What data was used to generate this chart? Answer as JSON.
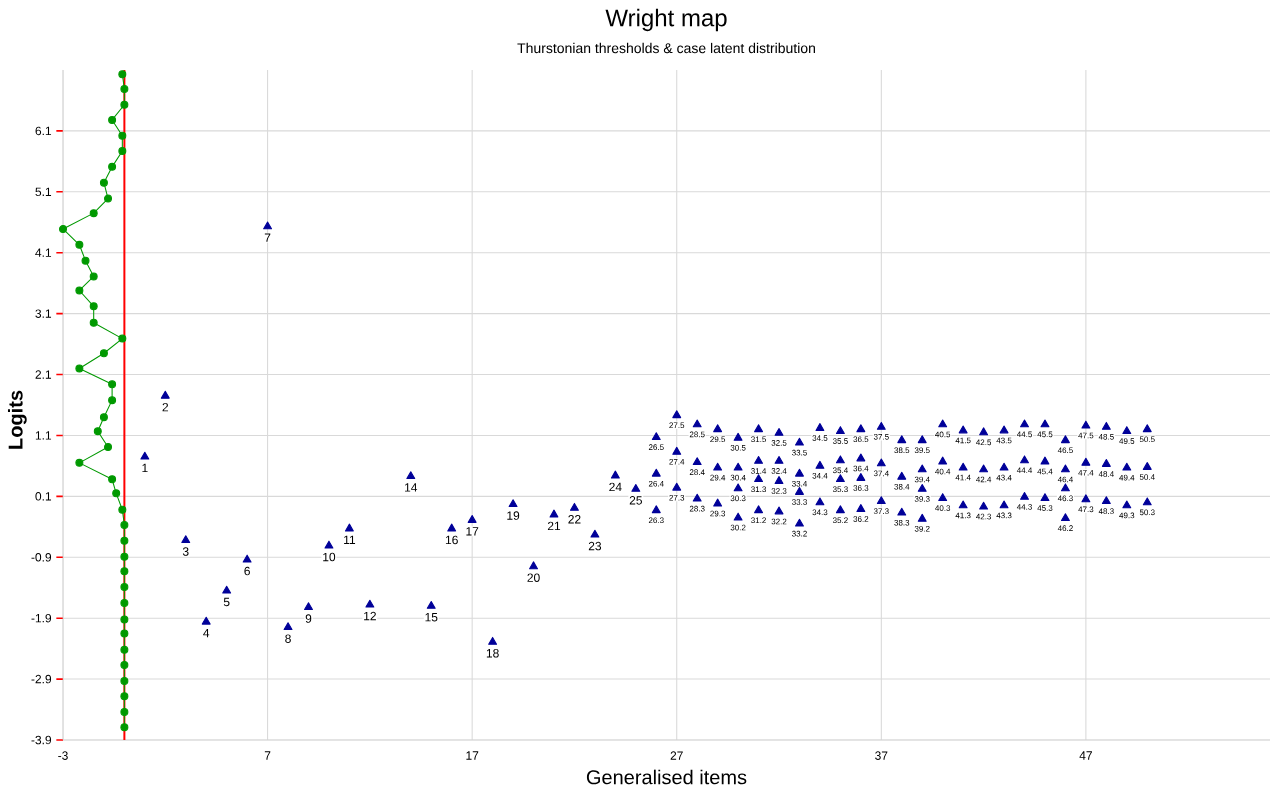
{
  "chart_data": {
    "type": "scatter",
    "title": "Wright map",
    "subtitle": "Thurstonian thresholds & case latent distribution",
    "xlabel": "Generalised items",
    "ylabel": "Logits",
    "xlim": [
      -3,
      56
    ],
    "ylim": [
      -3.9,
      7.1
    ],
    "xticks": [
      -3,
      7,
      17,
      27,
      37,
      47
    ],
    "yticks": [
      -3.9,
      -2.9,
      -1.9,
      -0.9,
      0.1,
      1.1,
      2.1,
      3.1,
      4.1,
      5.1,
      6.1
    ],
    "grid": true,
    "ref_lines": [
      {
        "axis": "x",
        "value": 0,
        "color": "#ff0000"
      }
    ],
    "series": [
      {
        "type": "line",
        "color": "#009900",
        "marker": "circle",
        "x": [
          -0.1,
          0,
          0,
          -0.6,
          -0.1,
          -0.1,
          -0.6,
          -1.0,
          -0.8,
          -1.5,
          -3,
          -2.2,
          -1.9,
          -1.5,
          -2.2,
          -1.5,
          -1.5,
          -0.1,
          -1.0,
          -2.2,
          -0.6,
          -0.6,
          -1.0,
          -1.3,
          -0.8,
          -2.2,
          -0.6,
          -0.4,
          -0.1,
          0,
          0,
          0,
          0,
          0,
          0,
          0,
          0,
          0,
          0,
          0,
          0,
          0,
          0
        ],
        "values": [
          7.03,
          6.79,
          6.53,
          6.28,
          6.02,
          5.77,
          5.51,
          5.25,
          4.99,
          4.75,
          4.49,
          4.23,
          3.97,
          3.71,
          3.48,
          3.22,
          2.95,
          2.69,
          2.45,
          2.2,
          1.94,
          1.68,
          1.4,
          1.17,
          0.91,
          0.65,
          0.38,
          0.15,
          -0.12,
          -0.37,
          -0.63,
          -0.89,
          -1.13,
          -1.39,
          -1.65,
          -1.92,
          -2.15,
          -2.42,
          -2.67,
          -2.93,
          -3.18,
          -3.44,
          -3.69
        ]
      },
      {
        "type": "scatter",
        "color": "#000099",
        "marker": "triangle",
        "x": [
          1,
          2,
          3,
          4,
          5,
          6,
          7,
          8,
          9,
          10,
          11,
          12,
          14,
          15,
          16,
          17,
          18,
          19,
          20,
          21,
          22,
          23,
          24,
          25,
          26,
          26,
          26,
          27,
          27,
          27,
          28,
          28,
          28,
          29,
          29,
          29,
          30,
          30,
          30,
          30,
          31,
          31,
          31,
          31,
          32,
          32,
          32,
          32,
          33,
          33,
          33,
          33,
          34,
          34,
          34,
          35,
          35,
          35,
          35,
          36,
          36,
          36,
          36,
          37,
          37,
          37,
          38,
          38,
          38,
          39,
          39,
          39,
          39,
          40,
          40,
          40,
          41,
          41,
          41,
          42,
          42,
          42,
          43,
          43,
          43,
          44,
          44,
          44,
          45,
          45,
          45,
          46,
          46,
          46,
          46,
          47,
          47,
          47,
          48,
          48,
          48,
          49,
          49,
          49,
          50,
          50,
          50
        ],
        "values": [
          0.75,
          1.75,
          -0.62,
          -1.96,
          -1.45,
          -0.94,
          4.53,
          -2.05,
          -1.72,
          -0.71,
          -0.43,
          -1.68,
          0.43,
          -1.7,
          -0.43,
          -0.29,
          -2.29,
          -0.03,
          -1.05,
          -0.2,
          -0.09,
          -0.53,
          0.44,
          0.22,
          1.07,
          0.47,
          -0.13,
          1.43,
          0.83,
          0.24,
          1.28,
          0.66,
          0.06,
          1.2,
          0.57,
          -0.02,
          1.06,
          0.57,
          0.23,
          -0.25,
          1.2,
          0.68,
          0.38,
          -0.13,
          1.14,
          0.68,
          0.35,
          -0.15,
          0.98,
          0.47,
          0.17,
          -0.35,
          1.22,
          0.6,
          0.0,
          1.17,
          0.69,
          0.38,
          -0.13,
          1.2,
          0.72,
          0.4,
          -0.11,
          1.24,
          0.64,
          0.02,
          1.02,
          0.42,
          -0.17,
          1.02,
          0.54,
          0.22,
          -0.27,
          1.28,
          0.67,
          0.07,
          1.18,
          0.57,
          -0.05,
          1.15,
          0.54,
          -0.07,
          1.18,
          0.57,
          -0.05,
          1.28,
          0.69,
          0.09,
          1.28,
          0.67,
          0.07,
          1.02,
          0.54,
          0.23,
          -0.26,
          1.26,
          0.65,
          0.05,
          1.24,
          0.63,
          0.02,
          1.17,
          0.57,
          -0.05,
          1.2,
          0.58,
          0.0
        ]
      }
    ],
    "annotations": [
      {
        "text": "1",
        "x": 1,
        "y": 0.75
      },
      {
        "text": "2",
        "x": 2,
        "y": 1.75
      },
      {
        "text": "3",
        "x": 3,
        "y": -0.62
      },
      {
        "text": "4",
        "x": 4,
        "y": -1.96
      },
      {
        "text": "5",
        "x": 5,
        "y": -1.45
      },
      {
        "text": "6",
        "x": 6,
        "y": -0.94
      },
      {
        "text": "7",
        "x": 7,
        "y": 4.53
      },
      {
        "text": "8",
        "x": 8,
        "y": -2.05
      },
      {
        "text": "9",
        "x": 9,
        "y": -1.72
      },
      {
        "text": "10",
        "x": 10,
        "y": -0.71
      },
      {
        "text": "11",
        "x": 11,
        "y": -0.43
      },
      {
        "text": "12",
        "x": 12,
        "y": -1.68
      },
      {
        "text": "14",
        "x": 14,
        "y": 0.43
      },
      {
        "text": "15",
        "x": 15,
        "y": -1.7
      },
      {
        "text": "16",
        "x": 16,
        "y": -0.43
      },
      {
        "text": "17",
        "x": 17,
        "y": -0.29
      },
      {
        "text": "18",
        "x": 18,
        "y": -2.29
      },
      {
        "text": "19",
        "x": 19,
        "y": -0.03
      },
      {
        "text": "20",
        "x": 20,
        "y": -1.05
      },
      {
        "text": "21",
        "x": 21,
        "y": -0.2
      },
      {
        "text": "22",
        "x": 22,
        "y": -0.09
      },
      {
        "text": "23",
        "x": 23,
        "y": -0.53
      },
      {
        "text": "24",
        "x": 24,
        "y": 0.44
      },
      {
        "text": "25",
        "x": 25,
        "y": 0.22
      },
      {
        "text": "26.5",
        "x": 26,
        "y": 1.07
      },
      {
        "text": "26.4",
        "x": 26,
        "y": 0.47
      },
      {
        "text": "26.3",
        "x": 26,
        "y": -0.13
      },
      {
        "text": "27.5",
        "x": 27,
        "y": 1.43
      },
      {
        "text": "27.4",
        "x": 27,
        "y": 0.83
      },
      {
        "text": "27.3",
        "x": 27,
        "y": 0.24
      },
      {
        "text": "28.5",
        "x": 28,
        "y": 1.28
      },
      {
        "text": "28.4",
        "x": 28,
        "y": 0.66
      },
      {
        "text": "28.3",
        "x": 28,
        "y": 0.06
      },
      {
        "text": "29.5",
        "x": 29,
        "y": 1.2
      },
      {
        "text": "29.4",
        "x": 29,
        "y": 0.57
      },
      {
        "text": "29.3",
        "x": 29,
        "y": -0.02
      },
      {
        "text": "30.5",
        "x": 30,
        "y": 1.06
      },
      {
        "text": "30.4",
        "x": 30,
        "y": 0.57
      },
      {
        "text": "30.3",
        "x": 30,
        "y": 0.23
      },
      {
        "text": "30.2",
        "x": 30,
        "y": -0.25
      },
      {
        "text": "31.5",
        "x": 31,
        "y": 1.2
      },
      {
        "text": "31.4",
        "x": 31,
        "y": 0.68
      },
      {
        "text": "31.3",
        "x": 31,
        "y": 0.38
      },
      {
        "text": "31.2",
        "x": 31,
        "y": -0.13
      },
      {
        "text": "32.5",
        "x": 32,
        "y": 1.14
      },
      {
        "text": "32.4",
        "x": 32,
        "y": 0.68
      },
      {
        "text": "32.3",
        "x": 32,
        "y": 0.35
      },
      {
        "text": "32.2",
        "x": 32,
        "y": -0.15
      },
      {
        "text": "33.5",
        "x": 33,
        "y": 0.98
      },
      {
        "text": "33.4",
        "x": 33,
        "y": 0.47
      },
      {
        "text": "33.3",
        "x": 33,
        "y": 0.17
      },
      {
        "text": "33.2",
        "x": 33,
        "y": -0.35
      },
      {
        "text": "34.5",
        "x": 34,
        "y": 1.22
      },
      {
        "text": "34.4",
        "x": 34,
        "y": 0.6
      },
      {
        "text": "34.3",
        "x": 34,
        "y": 0.0
      },
      {
        "text": "35.5",
        "x": 35,
        "y": 1.17
      },
      {
        "text": "35.4",
        "x": 35,
        "y": 0.69
      },
      {
        "text": "35.3",
        "x": 35,
        "y": 0.38
      },
      {
        "text": "35.2",
        "x": 35,
        "y": -0.13
      },
      {
        "text": "36.5",
        "x": 36,
        "y": 1.2
      },
      {
        "text": "36.4",
        "x": 36,
        "y": 0.72
      },
      {
        "text": "36.3",
        "x": 36,
        "y": 0.4
      },
      {
        "text": "36.2",
        "x": 36,
        "y": -0.11
      },
      {
        "text": "37.5",
        "x": 37,
        "y": 1.24
      },
      {
        "text": "37.4",
        "x": 37,
        "y": 0.64
      },
      {
        "text": "37.3",
        "x": 37,
        "y": 0.02
      },
      {
        "text": "38.5",
        "x": 38,
        "y": 1.02
      },
      {
        "text": "38.4",
        "x": 38,
        "y": 0.42
      },
      {
        "text": "38.3",
        "x": 38,
        "y": -0.17
      },
      {
        "text": "39.5",
        "x": 39,
        "y": 1.02
      },
      {
        "text": "39.4",
        "x": 39,
        "y": 0.54
      },
      {
        "text": "39.3",
        "x": 39,
        "y": 0.22
      },
      {
        "text": "39.2",
        "x": 39,
        "y": -0.27
      },
      {
        "text": "40.5",
        "x": 40,
        "y": 1.28
      },
      {
        "text": "40.4",
        "x": 40,
        "y": 0.67
      },
      {
        "text": "40.3",
        "x": 40,
        "y": 0.07
      },
      {
        "text": "41.5",
        "x": 41,
        "y": 1.18
      },
      {
        "text": "41.4",
        "x": 41,
        "y": 0.57
      },
      {
        "text": "41.3",
        "x": 41,
        "y": -0.05
      },
      {
        "text": "42.5",
        "x": 42,
        "y": 1.15
      },
      {
        "text": "42.4",
        "x": 42,
        "y": 0.54
      },
      {
        "text": "42.3",
        "x": 42,
        "y": -0.07
      },
      {
        "text": "43.5",
        "x": 43,
        "y": 1.18
      },
      {
        "text": "43.4",
        "x": 43,
        "y": 0.57
      },
      {
        "text": "43.3",
        "x": 43,
        "y": -0.05
      },
      {
        "text": "44.5",
        "x": 44,
        "y": 1.28
      },
      {
        "text": "44.4",
        "x": 44,
        "y": 0.69
      },
      {
        "text": "44.3",
        "x": 44,
        "y": 0.09
      },
      {
        "text": "45.5",
        "x": 45,
        "y": 1.28
      },
      {
        "text": "45.4",
        "x": 45,
        "y": 0.67
      },
      {
        "text": "45.3",
        "x": 45,
        "y": 0.07
      },
      {
        "text": "46.5",
        "x": 46,
        "y": 1.02
      },
      {
        "text": "46.4",
        "x": 46,
        "y": 0.54
      },
      {
        "text": "46.3",
        "x": 46,
        "y": 0.23
      },
      {
        "text": "46.2",
        "x": 46,
        "y": -0.26
      },
      {
        "text": "47.5",
        "x": 47,
        "y": 1.26
      },
      {
        "text": "47.4",
        "x": 47,
        "y": 0.65
      },
      {
        "text": "47.3",
        "x": 47,
        "y": 0.05
      },
      {
        "text": "48.5",
        "x": 48,
        "y": 1.24
      },
      {
        "text": "48.4",
        "x": 48,
        "y": 0.63
      },
      {
        "text": "48.3",
        "x": 48,
        "y": 0.02
      },
      {
        "text": "49.5",
        "x": 49,
        "y": 1.17
      },
      {
        "text": "49.4",
        "x": 49,
        "y": 0.57
      },
      {
        "text": "49.3",
        "x": 49,
        "y": -0.05
      },
      {
        "text": "50.5",
        "x": 50,
        "y": 1.2
      },
      {
        "text": "50.4",
        "x": 50,
        "y": 0.58
      },
      {
        "text": "50.3",
        "x": 50,
        "y": 0.0
      }
    ]
  }
}
